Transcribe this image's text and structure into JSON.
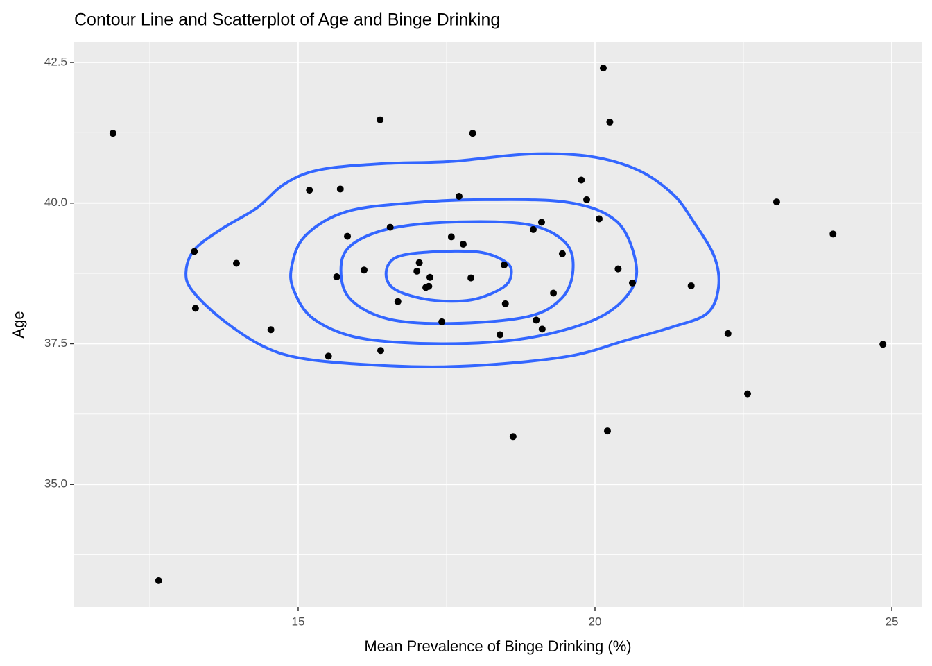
{
  "chart_data": {
    "type": "scatter",
    "title": "Contour Line and Scatterplot of Age and Binge Drinking",
    "x_label": "Mean Prevalence of Binge Drinking (%)",
    "y_label": "Age",
    "xlim": [
      11.227,
      25.502
    ],
    "ylim": [
      32.82,
      42.87
    ],
    "xticks": [
      15,
      20,
      25
    ],
    "yticks": [
      {
        "value": 35,
        "label": "35.0"
      },
      {
        "value": 37.5,
        "label": "37.5"
      },
      {
        "value": 40,
        "label": "40.0"
      },
      {
        "value": 42.5,
        "label": "42.5"
      }
    ],
    "grid": true,
    "color": "#000000",
    "contour_color": "#3366ff",
    "x": [
      11.88,
      12.65,
      13.25,
      13.27,
      13.96,
      14.54,
      15.19,
      15.71,
      15.51,
      15.65,
      15.83,
      16.11,
      16.38,
      16.39,
      16.55,
      16.68,
      17.0,
      17.04,
      17.22,
      17.15,
      17.2,
      17.42,
      17.58,
      17.71,
      17.78,
      17.91,
      17.94,
      18.4,
      18.47,
      18.49,
      18.62,
      18.96,
      19.01,
      19.1,
      19.11,
      19.3,
      19.45,
      19.77,
      19.86,
      20.07,
      20.14,
      20.21,
      20.25,
      20.39,
      20.63,
      21.62,
      22.24,
      22.57,
      23.06,
      24.01,
      24.85
    ],
    "values": [
      41.24,
      33.29,
      39.14,
      38.13,
      38.93,
      37.75,
      40.23,
      40.25,
      37.28,
      38.69,
      39.41,
      38.81,
      41.48,
      37.38,
      39.57,
      38.25,
      38.79,
      38.94,
      38.68,
      38.5,
      38.52,
      37.89,
      39.4,
      40.12,
      39.27,
      38.67,
      41.24,
      37.66,
      38.9,
      38.21,
      35.85,
      39.53,
      37.92,
      39.66,
      37.76,
      38.4,
      39.1,
      40.41,
      40.06,
      39.72,
      42.4,
      35.95,
      41.44,
      38.83,
      38.58,
      38.53,
      37.68,
      36.61,
      40.02,
      39.45,
      37.49
    ],
    "contours": [
      {
        "x": [
          13.11,
          13.25,
          13.71,
          14.3,
          14.77,
          15.35,
          16.4,
          17.57,
          18.86,
          19.91,
          20.72,
          21.31,
          21.66,
          22.01,
          22.08,
          21.89,
          21.31,
          20.49,
          19.67,
          18.62,
          17.45,
          16.29,
          15.12,
          14.42,
          13.71,
          13.22
        ],
        "y": [
          38.77,
          39.17,
          39.54,
          39.91,
          40.34,
          40.59,
          40.7,
          40.74,
          40.87,
          40.83,
          40.59,
          40.16,
          39.67,
          39.05,
          38.5,
          38.04,
          37.8,
          37.55,
          37.3,
          37.16,
          37.09,
          37.12,
          37.23,
          37.45,
          37.94,
          38.44
        ]
      },
      {
        "x": [
          14.89,
          15.12,
          15.82,
          16.99,
          18.15,
          19.56,
          20.37,
          20.69,
          20.58,
          20.02,
          18.86,
          17.45,
          16.05,
          15.26,
          14.93
        ],
        "y": [
          38.87,
          39.42,
          39.85,
          40.01,
          40.06,
          40.01,
          39.67,
          38.93,
          38.41,
          37.94,
          37.6,
          37.5,
          37.6,
          37.94,
          38.44
        ]
      },
      {
        "x": [
          15.72,
          15.88,
          16.52,
          17.57,
          18.86,
          19.5,
          19.63,
          19.44,
          18.86,
          17.57,
          16.52,
          15.88
        ],
        "y": [
          38.81,
          39.24,
          39.54,
          39.66,
          39.62,
          39.3,
          38.81,
          38.31,
          37.98,
          37.86,
          37.94,
          38.29
        ]
      },
      {
        "x": [
          16.48,
          16.64,
          17.22,
          18.04,
          18.5,
          18.59,
          18.45,
          17.92,
          17.22,
          16.64
        ],
        "y": [
          38.74,
          39.03,
          39.13,
          39.13,
          38.95,
          38.74,
          38.5,
          38.28,
          38.28,
          38.46
        ]
      }
    ]
  }
}
